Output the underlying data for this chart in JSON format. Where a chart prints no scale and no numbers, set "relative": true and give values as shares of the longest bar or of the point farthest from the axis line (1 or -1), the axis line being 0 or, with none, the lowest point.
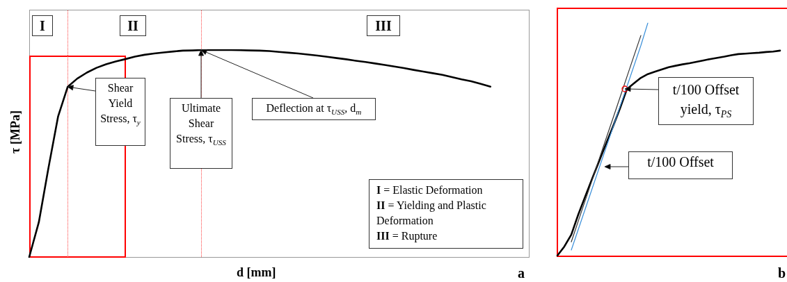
{
  "chart_data": [
    {
      "type": "line",
      "title": "a",
      "xlabel": "d [mm]",
      "ylabel": "τ [MPa]",
      "relative": true,
      "tick_labels": false,
      "categories": [
        null,
        null,
        null,
        null,
        null,
        null,
        null,
        null,
        null,
        null,
        null,
        null,
        null,
        null,
        null,
        null,
        null,
        null,
        null,
        null,
        null,
        null,
        null,
        null,
        null,
        null,
        null,
        null,
        null,
        null,
        null,
        null,
        null,
        null,
        null,
        null,
        null,
        null,
        null,
        null,
        null,
        null,
        null,
        null,
        null,
        null,
        null,
        null,
        null,
        null,
        null,
        null,
        null
      ],
      "series": [
        {
          "color": "#000000",
          "values": [
            0,
            0.168,
            0.43,
            0.678,
            0.822,
            0.862,
            0.891,
            0.914,
            0.931,
            0.945,
            0.956,
            0.968,
            0.977,
            0.983,
            0.988,
            0.993,
            0.997,
            0.998,
            1,
            1,
            1,
            1,
            0.999,
            0.998,
            0.997,
            0.995,
            0.991,
            0.987,
            0.983,
            0.978,
            0.973,
            0.967,
            0.961,
            0.955,
            0.948,
            0.942,
            0.935,
            0.928,
            0.92,
            0.913,
            0.904,
            0.896,
            0.888,
            0.88,
            0.869,
            0.858,
            0.849,
            0.836,
            0.823,
            null,
            null,
            null,
            null
          ]
        }
      ],
      "annotations": [
        "I",
        "II",
        "III",
        "Shear Yield Stress, τ$_{y}$",
        "Ultimate Shear Stress, τ$_{USS}$",
        "Deflection at τ$_{USS}$, d$_{m}$",
        "I = Elastic Deformation",
        "II = Yielding and Plastic Deformation",
        "III = Rupture"
      ]
    },
    {
      "type": "line",
      "title": "b",
      "relative": true,
      "tick_labels": false,
      "categories": [
        null,
        null,
        null,
        null,
        null,
        null,
        null,
        null,
        null,
        null,
        null,
        null,
        null,
        null,
        null,
        null,
        null,
        null,
        null,
        null,
        null,
        null,
        null,
        null,
        null,
        null,
        null,
        null,
        null,
        null,
        null,
        null,
        null,
        null
      ],
      "series": [
        {
          "color": "#000000",
          "values": [
            0,
            0.039,
            0.09,
            0.176,
            0.254,
            0.331,
            0.406,
            0.481,
            0.555,
            0.633,
            0.716,
            0.74,
            0.764,
            0.78,
            0.79,
            0.8,
            0.81,
            0.816,
            0.822,
            0.827,
            0.833,
            0.839,
            0.845,
            0.85,
            0.855,
            0.861,
            0.866,
            0.868,
            0.87,
            0.872,
            0.875,
            0.877,
            0.881,
            null
          ]
        },
        {
          "color": "#333333",
          "values": [
            null,
            null,
            0.059,
            0.148,
            0.237,
            0.325,
            0.414,
            0.503,
            0.591,
            0.68,
            0.769,
            0.858,
            0.946,
            null,
            null,
            null,
            null,
            null,
            null,
            null,
            null,
            null,
            null,
            null,
            null,
            null,
            null,
            null,
            null,
            null,
            null,
            null,
            null,
            null
          ]
        },
        {
          "color": "#3a8fd9",
          "values": [
            null,
            null,
            0.024,
            0.112,
            0.2,
            0.288,
            0.376,
            0.464,
            0.552,
            0.64,
            0.727,
            0.815,
            0.903,
            1,
            null,
            null,
            null,
            null,
            null,
            null,
            null,
            null,
            null,
            null,
            null,
            null,
            null,
            null,
            null,
            null,
            null,
            null,
            null,
            null
          ]
        }
      ],
      "annotations": [
        "t/100 Offset yield, τ$_{PS}$",
        "t/100 Offset"
      ]
    }
  ]
}
